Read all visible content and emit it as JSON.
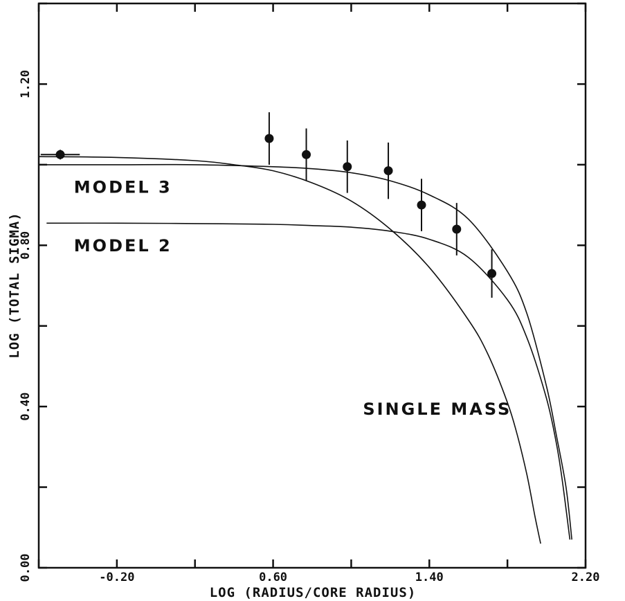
{
  "chart_data": {
    "type": "scatter",
    "xlabel": "LOG (RADIUS/CORE RADIUS)",
    "ylabel": "LOG (TOTAL SIGMA)",
    "xlim": [
      -0.6,
      2.2
    ],
    "ylim": [
      0.0,
      1.4
    ],
    "x_ticks": [
      -0.6,
      -0.2,
      0.2,
      0.6,
      1.0,
      1.4,
      1.8,
      2.2
    ],
    "x_tick_labels": [
      {
        "value": -0.2,
        "label": "-0.20"
      },
      {
        "value": 0.6,
        "label": "0.60"
      },
      {
        "value": 1.4,
        "label": "1.40"
      },
      {
        "value": 2.2,
        "label": "2.20"
      }
    ],
    "y_ticks": [
      0.0,
      0.2,
      0.4,
      0.6,
      0.8,
      1.0,
      1.2,
      1.4
    ],
    "y_tick_labels": [
      {
        "value": 0.0,
        "label": "0.00"
      },
      {
        "value": 0.4,
        "label": "0.40"
      },
      {
        "value": 0.8,
        "label": "0.80"
      },
      {
        "value": 1.2,
        "label": "1.20"
      }
    ],
    "grid": false,
    "points": [
      {
        "x": -0.49,
        "y": 1.025,
        "yerr": 0.012,
        "xerr": 0.1
      },
      {
        "x": 0.58,
        "y": 1.065,
        "yerr": 0.065
      },
      {
        "x": 0.77,
        "y": 1.025,
        "yerr": 0.065
      },
      {
        "x": 0.98,
        "y": 0.995,
        "yerr": 0.065
      },
      {
        "x": 1.19,
        "y": 0.985,
        "yerr": 0.07
      },
      {
        "x": 1.36,
        "y": 0.9,
        "yerr": 0.065
      },
      {
        "x": 1.54,
        "y": 0.84,
        "yerr": 0.065
      },
      {
        "x": 1.72,
        "y": 0.73,
        "yerr": 0.06
      }
    ],
    "series": [
      {
        "label": "SINGLE MASS",
        "x": [
          -0.6,
          -0.2,
          0.2,
          0.4,
          0.6,
          0.8,
          1.0,
          1.2,
          1.4,
          1.6,
          1.7,
          1.8,
          1.85,
          1.9,
          1.94,
          1.97
        ],
        "y": [
          1.02,
          1.018,
          1.01,
          1.0,
          0.985,
          0.955,
          0.91,
          0.84,
          0.745,
          0.615,
          0.53,
          0.41,
          0.33,
          0.23,
          0.13,
          0.06
        ]
      },
      {
        "label": "MODEL 2",
        "x": [
          -0.56,
          -0.2,
          0.2,
          0.6,
          0.8,
          1.0,
          1.2,
          1.4,
          1.6,
          1.8,
          1.9,
          2.0,
          2.05,
          2.08,
          2.12
        ],
        "y": [
          0.855,
          0.855,
          0.854,
          0.852,
          0.849,
          0.845,
          0.835,
          0.815,
          0.77,
          0.665,
          0.57,
          0.42,
          0.31,
          0.22,
          0.07
        ]
      },
      {
        "label": "MODEL 3",
        "x": [
          -0.6,
          -0.2,
          0.2,
          0.6,
          0.8,
          1.0,
          1.2,
          1.4,
          1.6,
          1.8,
          1.9,
          2.0,
          2.05,
          2.1,
          2.13
        ],
        "y": [
          1.0,
          1.0,
          1.0,
          0.995,
          0.99,
          0.98,
          0.96,
          0.925,
          0.865,
          0.735,
          0.63,
          0.45,
          0.33,
          0.2,
          0.07
        ]
      }
    ],
    "annotations": [
      {
        "text": "MODEL 3",
        "x": -0.42,
        "y": 0.93
      },
      {
        "text": "MODEL 2",
        "x": -0.42,
        "y": 0.785
      },
      {
        "text": "SINGLE MASS",
        "x": 1.06,
        "y": 0.38
      }
    ]
  }
}
